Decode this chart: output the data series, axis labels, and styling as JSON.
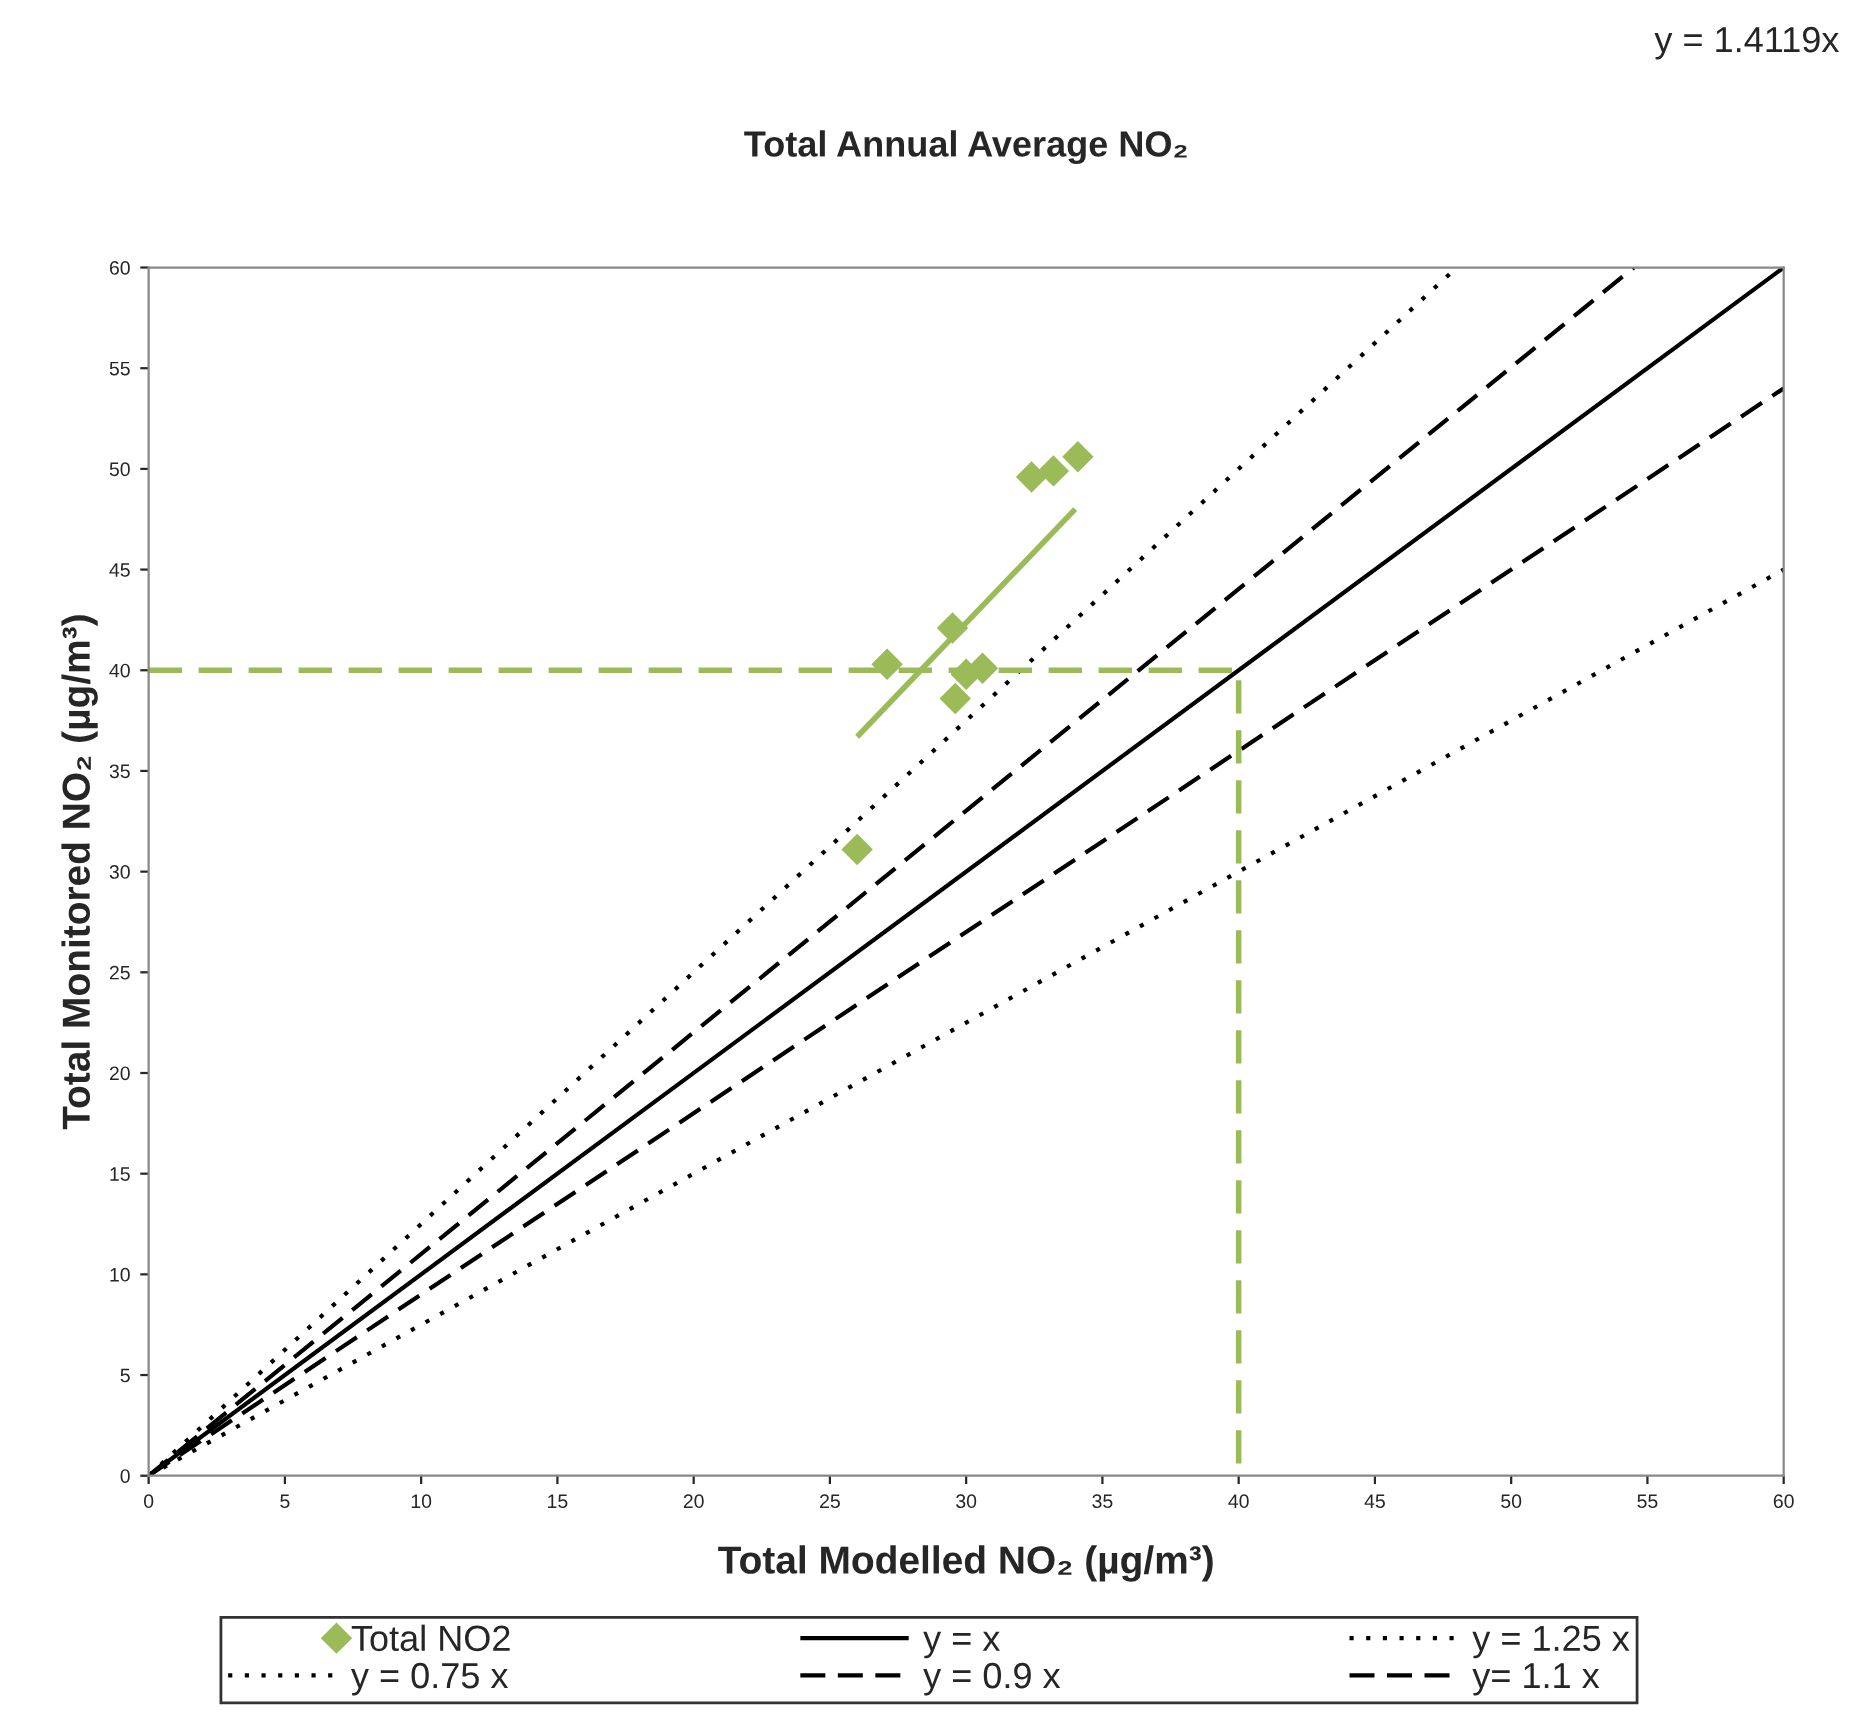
{
  "chart_data": {
    "type": "scatter",
    "title": "Total Annual Average NO₂",
    "xlabel": "Total Modelled NO₂ (µg/m³)",
    "ylabel": "Total Monitored NO₂ (µg/m³)",
    "annotations": [
      "y = 1.4119x"
    ],
    "xlim": [
      0,
      60
    ],
    "ylim": [
      0,
      60
    ],
    "xticks": [
      0,
      5,
      10,
      15,
      20,
      25,
      30,
      35,
      40,
      45,
      50,
      55,
      60
    ],
    "yticks": [
      0,
      5,
      10,
      15,
      20,
      25,
      30,
      35,
      40,
      45,
      50,
      55,
      60
    ],
    "grid": false,
    "legend": "bottom",
    "series": [
      {
        "name": "Total NO2",
        "marker": "diamond",
        "color": "#9bbb59",
        "x": [
          26.0,
          27.1,
          29.5,
          29.6,
          30.0,
          30.6,
          32.4,
          33.2,
          34.1
        ],
        "values": [
          31.1,
          40.3,
          42.1,
          38.6,
          39.8,
          40.1,
          49.6,
          49.9,
          50.6
        ]
      },
      {
        "name": "y = 0.75 x",
        "type": "line",
        "line_style": "dotted",
        "color": "#000000",
        "x": [
          0,
          60
        ],
        "values": [
          0,
          45
        ]
      },
      {
        "name": "y = x",
        "type": "line",
        "line_style": "solid",
        "color": "#000000",
        "x": [
          0,
          60
        ],
        "values": [
          0,
          60
        ]
      },
      {
        "name": "y = 0.9 x",
        "type": "line",
        "line_style": "dashed",
        "color": "#000000",
        "x": [
          0,
          60
        ],
        "values": [
          0,
          54
        ]
      },
      {
        "name": "y = 1.25 x",
        "type": "line",
        "line_style": "dotted",
        "color": "#000000",
        "x": [
          0,
          48
        ],
        "values": [
          0,
          60
        ]
      },
      {
        "name": "y= 1.1 x",
        "type": "line",
        "line_style": "dashed",
        "color": "#000000",
        "x": [
          0,
          54.5
        ],
        "values": [
          0,
          60
        ]
      },
      {
        "type": "line",
        "line_style": "solid",
        "color": "#9bbb59",
        "x": [
          26.0,
          34.0
        ],
        "values": [
          36.7,
          48.0
        ]
      },
      {
        "type": "line",
        "line_style": "dashed",
        "color": "#9bbb59",
        "x": [
          0,
          40,
          40
        ],
        "values": [
          40,
          40,
          0
        ]
      }
    ]
  }
}
